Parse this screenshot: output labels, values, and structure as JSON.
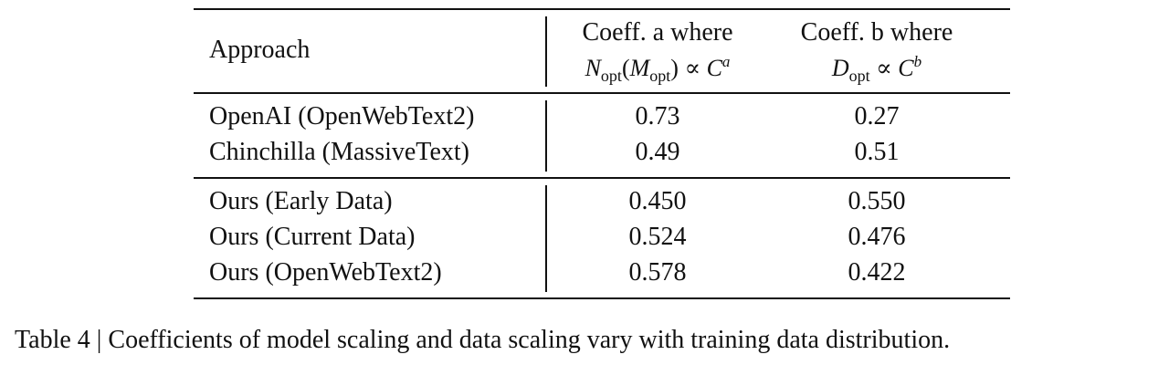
{
  "table": {
    "header": {
      "approach": "Approach",
      "coeff_a_label": "Coeff. a where",
      "coeff_b_label": "Coeff. b where",
      "formula_a": {
        "n": "N",
        "n_sub": "opt",
        "m": "M",
        "m_sub": "opt",
        "rel": "∝",
        "c": "C",
        "exp": "a"
      },
      "formula_b": {
        "d": "D",
        "d_sub": "opt",
        "rel": "∝",
        "c": "C",
        "exp": "b"
      }
    },
    "group1": [
      {
        "approach": "OpenAI (OpenWebText2)",
        "a": "0.73",
        "b": "0.27"
      },
      {
        "approach": "Chinchilla (MassiveText)",
        "a": "0.49",
        "b": "0.51"
      }
    ],
    "group2": [
      {
        "approach": "Ours (Early Data)",
        "a": "0.450",
        "b": "0.550"
      },
      {
        "approach": "Ours (Current Data)",
        "a": "0.524",
        "b": "0.476"
      },
      {
        "approach": "Ours (OpenWebText2)",
        "a": "0.578",
        "b": "0.422"
      }
    ]
  },
  "caption": "Table 4 | Coefficients of model scaling and data scaling vary with training data distribution."
}
